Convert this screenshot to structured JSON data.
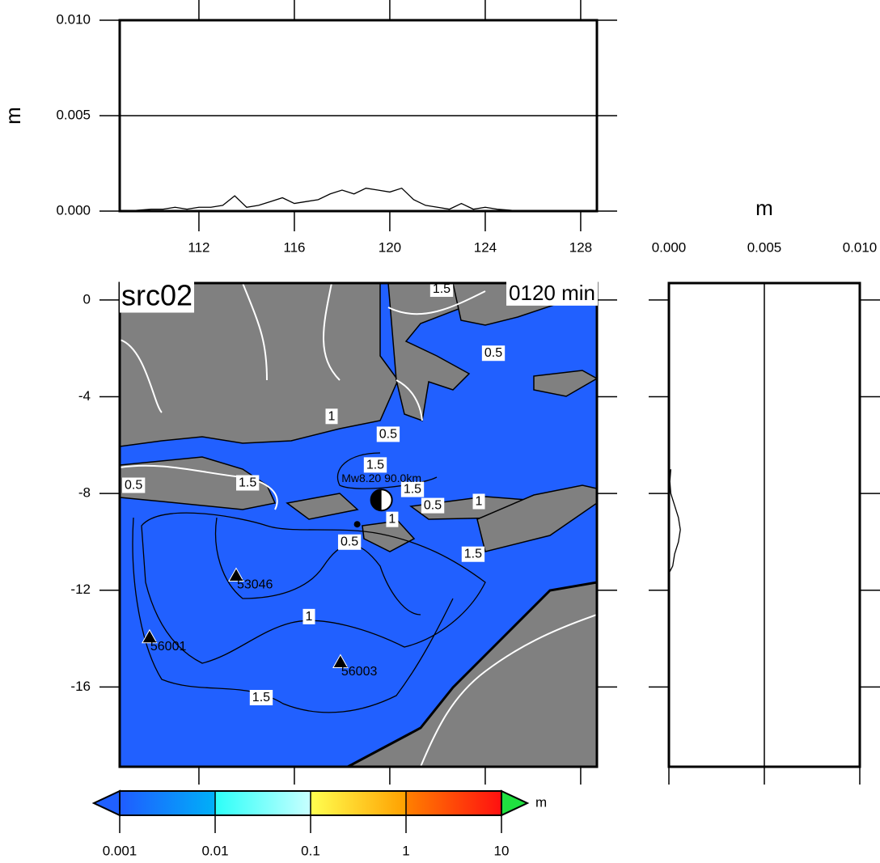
{
  "chart_data": [
    {
      "type": "line",
      "ylabel": "m",
      "color": "#000000",
      "grid": true,
      "xlim": [
        108.68,
        128.68
      ],
      "ylim": [
        0,
        0.01
      ],
      "xticks": [
        112,
        116,
        120,
        124,
        128
      ],
      "yticks": [
        {
          "value": 0,
          "label": "0.000"
        },
        {
          "value": 0.005,
          "label": "0.005"
        },
        {
          "value": 0.01,
          "label": "0.010"
        }
      ],
      "x": [
        109,
        109.5,
        110,
        110.5,
        111,
        111.5,
        112,
        112.5,
        113,
        113.5,
        114,
        114.5,
        115,
        115.5,
        116,
        116.5,
        117,
        117.5,
        118,
        118.5,
        119,
        119.5,
        120,
        120.5,
        121,
        121.5,
        122,
        122.5,
        123,
        123.5,
        124,
        124.5,
        125,
        125.5,
        126
      ],
      "values": [
        0,
        5e-05,
        0.0001,
        0.0001,
        0.0002,
        0.0001,
        0.0002,
        0.0002,
        0.0003,
        0.0008,
        0.0002,
        0.0003,
        0.0005,
        0.0007,
        0.0004,
        0.0005,
        0.0006,
        0.0009,
        0.0011,
        0.0009,
        0.0012,
        0.0011,
        0.001,
        0.0012,
        0.0006,
        0.0003,
        0.0002,
        0.0001,
        0.0004,
        0.0001,
        0.0002,
        0.0001,
        5e-05,
        0,
        0
      ]
    },
    {
      "type": "map",
      "title": "src02",
      "subtitle": "0120 min",
      "water_color": "#2160ff",
      "land_color": "#808080",
      "xlim": [
        108.68,
        128.68
      ],
      "ylim": [
        -19.3,
        0.7
      ],
      "xticks": [
        112,
        116,
        120,
        124,
        128
      ],
      "yticks": [
        0,
        -4,
        -8,
        -12,
        -16
      ],
      "epicenter": {
        "label": "Mw8.20  90.0km",
        "lon": 119.65,
        "lat": -8.27
      },
      "stations": [
        {
          "name": "53046",
          "lon": 113.56,
          "lat": -11.39
        },
        {
          "name": "56001",
          "lon": 109.93,
          "lat": -13.94
        },
        {
          "name": "56003",
          "lon": 117.93,
          "lat": -14.97
        }
      ],
      "contour_labels": [
        {
          "label": "1.5",
          "lon": 122.17,
          "lat": 0.44
        },
        {
          "label": "0.5",
          "lon": 124.34,
          "lat": -2.21
        },
        {
          "label": "1",
          "lon": 117.56,
          "lat": -4.82
        },
        {
          "label": "0.5",
          "lon": 119.93,
          "lat": -5.56
        },
        {
          "label": "1.5",
          "lon": 119.39,
          "lat": -6.83
        },
        {
          "label": "1.5",
          "lon": 114.04,
          "lat": -7.57
        },
        {
          "label": "0.5",
          "lon": 109.26,
          "lat": -7.67
        },
        {
          "label": "1.5",
          "lon": 120.95,
          "lat": -7.84
        },
        {
          "label": "1",
          "lon": 120.1,
          "lat": -9.08
        },
        {
          "label": "0.5",
          "lon": 121.8,
          "lat": -8.51
        },
        {
          "label": "1",
          "lon": 123.73,
          "lat": -8.34
        },
        {
          "label": "0.5",
          "lon": 118.31,
          "lat": -10.02
        },
        {
          "label": "1.5",
          "lon": 123.49,
          "lat": -10.52
        },
        {
          "label": "1",
          "lon": 116.61,
          "lat": -13.1
        },
        {
          "label": "1.5",
          "lon": 114.61,
          "lat": -16.45
        }
      ]
    },
    {
      "type": "profile",
      "xlabel": "m",
      "color": "#000000",
      "grid": true,
      "xlim": [
        0,
        0.01
      ],
      "ylim": [
        -19.3,
        0.7
      ],
      "xticks": [
        {
          "value": 0,
          "label": "0.000"
        },
        {
          "value": 0.005,
          "label": "0.005"
        },
        {
          "value": 0.01,
          "label": "0.010"
        }
      ],
      "y": [
        -7,
        -7.5,
        -8,
        -8.5,
        -9,
        -9.5,
        -10,
        -10.5,
        -11,
        -11.3
      ],
      "values": [
        0.0001,
        5e-05,
        0.0001,
        0.0003,
        0.0005,
        0.0006,
        0.0005,
        0.0003,
        0.0002,
        0
      ]
    },
    {
      "type": "colorbar",
      "unit": "m",
      "log": true,
      "ticks": [
        0.001,
        0.01,
        0.1,
        1,
        10
      ],
      "segment_colors": [
        [
          "#1f5cff",
          "#00b0f8"
        ],
        [
          "#2cfff8",
          "#c8ffff"
        ],
        [
          "#ffff50",
          "#ffa000"
        ],
        [
          "#ff8000",
          "#ff1010"
        ]
      ],
      "under_color": "#2060ff",
      "over_color": "#20e040"
    }
  ]
}
